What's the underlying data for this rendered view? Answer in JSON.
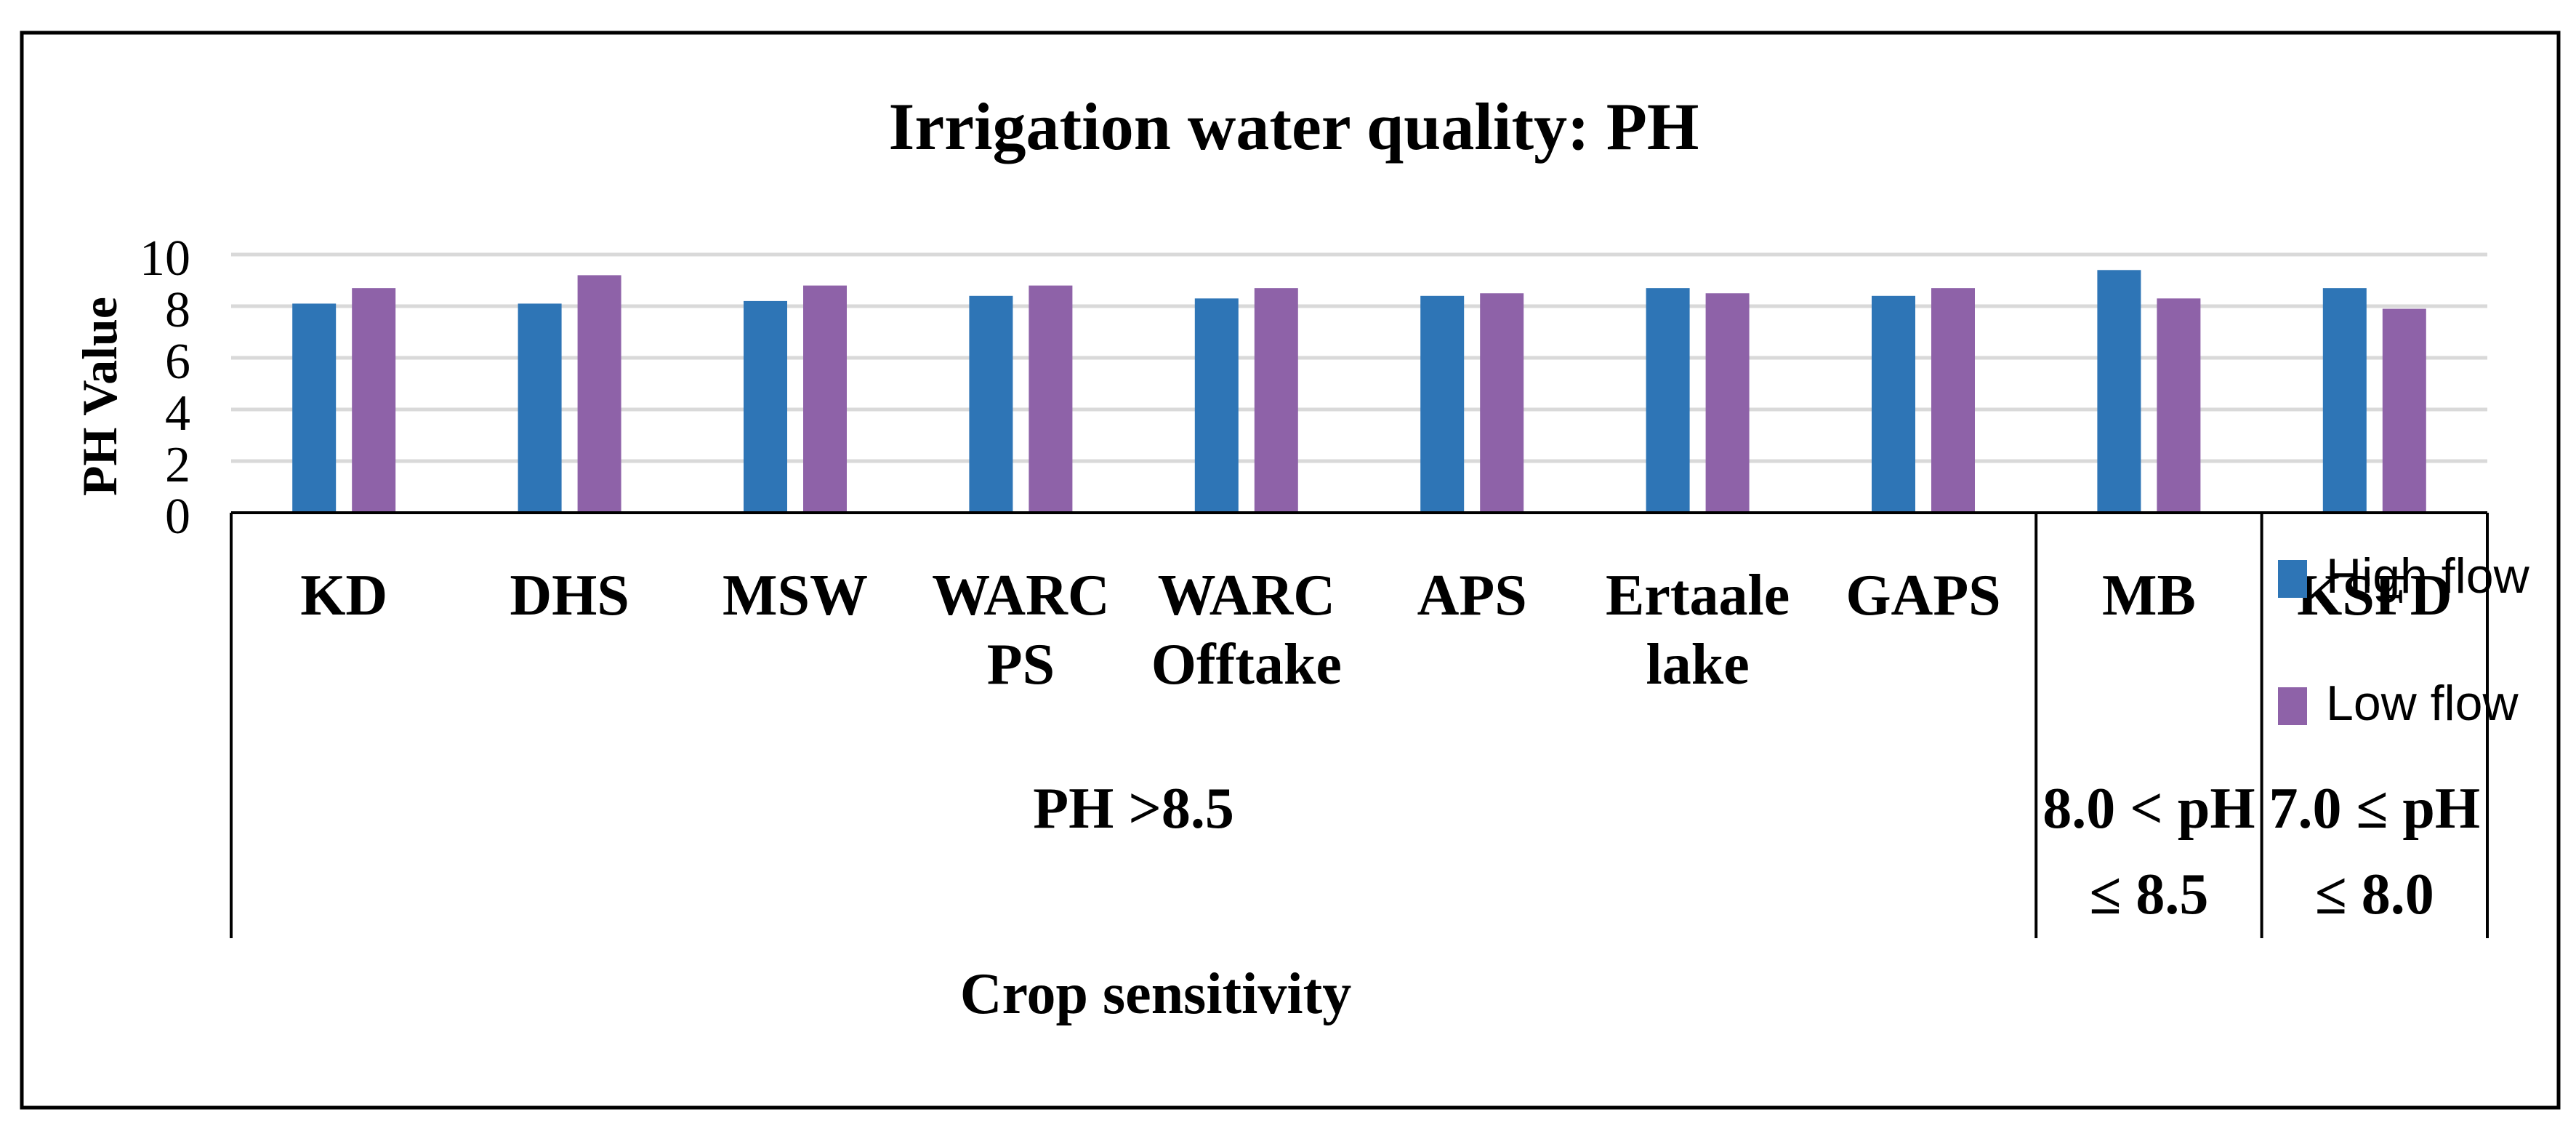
{
  "chart_data": {
    "type": "bar",
    "title": "Irrigation water quality: PH",
    "ylabel": "PH Value",
    "xlabel": "Crop sensitivity",
    "ylim": [
      0,
      10
    ],
    "yticks": [
      0,
      2,
      4,
      6,
      8,
      10
    ],
    "grid": true,
    "legend_position": "right",
    "categories": [
      "KD",
      "DHS",
      "MSW",
      "WARC PS",
      "WARC Offtake",
      "APS",
      "Ertaale lake",
      "GAPS",
      "MB",
      "KSFD"
    ],
    "category_lines": [
      [
        "KD"
      ],
      [
        "DHS"
      ],
      [
        "MSW"
      ],
      [
        "WARC",
        "PS"
      ],
      [
        "WARC",
        "Offtake"
      ],
      [
        "APS"
      ],
      [
        "Ertaale",
        "lake"
      ],
      [
        "GAPS"
      ],
      [
        "MB"
      ],
      [
        "KSFD"
      ]
    ],
    "series": [
      {
        "name": "High flow",
        "color": "#2E75B6",
        "values": [
          8.1,
          8.1,
          8.2,
          8.4,
          8.3,
          8.4,
          8.7,
          8.4,
          9.4,
          8.7
        ]
      },
      {
        "name": "Low flow",
        "color": "#8E62A8",
        "values": [
          8.7,
          9.2,
          8.8,
          8.8,
          8.7,
          8.5,
          8.5,
          8.7,
          8.3,
          7.9
        ]
      }
    ],
    "groups": [
      {
        "label_lines": [
          "PH >8.5"
        ],
        "start": 0,
        "end": 7
      },
      {
        "label_lines": [
          "8.0 < pH",
          "≤ 8.5"
        ],
        "start": 8,
        "end": 8
      },
      {
        "label_lines": [
          "7.0 ≤ pH",
          "≤ 8.0"
        ],
        "start": 9,
        "end": 9
      }
    ]
  }
}
